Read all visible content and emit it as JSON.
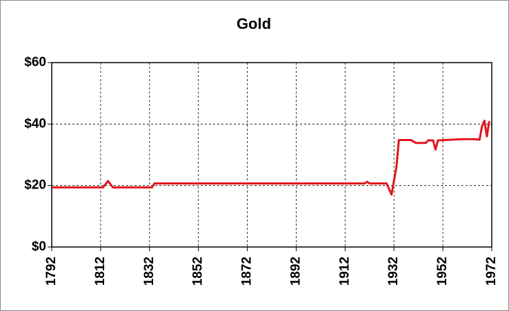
{
  "chart_data": {
    "type": "line",
    "title": "Gold",
    "x": [
      1792,
      1813,
      1815,
      1817,
      1833,
      1834,
      1920,
      1921,
      1922,
      1929,
      1931,
      1933,
      1934,
      1939,
      1941,
      1945,
      1946,
      1948,
      1949,
      1950,
      1955,
      1960,
      1965,
      1967,
      1968,
      1969,
      1970,
      1971
    ],
    "series": [
      {
        "name": "Gold",
        "color": "#e3141c",
        "values": [
          19.39,
          19.39,
          21.5,
          19.39,
          19.39,
          20.67,
          20.67,
          21.2,
          20.67,
          20.67,
          17.06,
          26,
          34.8,
          34.8,
          33.85,
          33.85,
          34.7,
          34.7,
          31.7,
          34.7,
          34.9,
          35.1,
          35.1,
          34.9,
          39.3,
          41.1,
          36.0,
          41.0
        ]
      }
    ],
    "xlim": [
      1792,
      1972
    ],
    "xticks": [
      1792,
      1812,
      1832,
      1852,
      1872,
      1892,
      1912,
      1932,
      1952,
      1972
    ],
    "ylim": [
      0,
      60
    ],
    "yticks": [
      {
        "value": 0,
        "label": "$0"
      },
      {
        "value": 20,
        "label": "$20"
      },
      {
        "value": 40,
        "label": "$40"
      },
      {
        "value": 60,
        "label": "$60"
      }
    ],
    "grid": true
  }
}
